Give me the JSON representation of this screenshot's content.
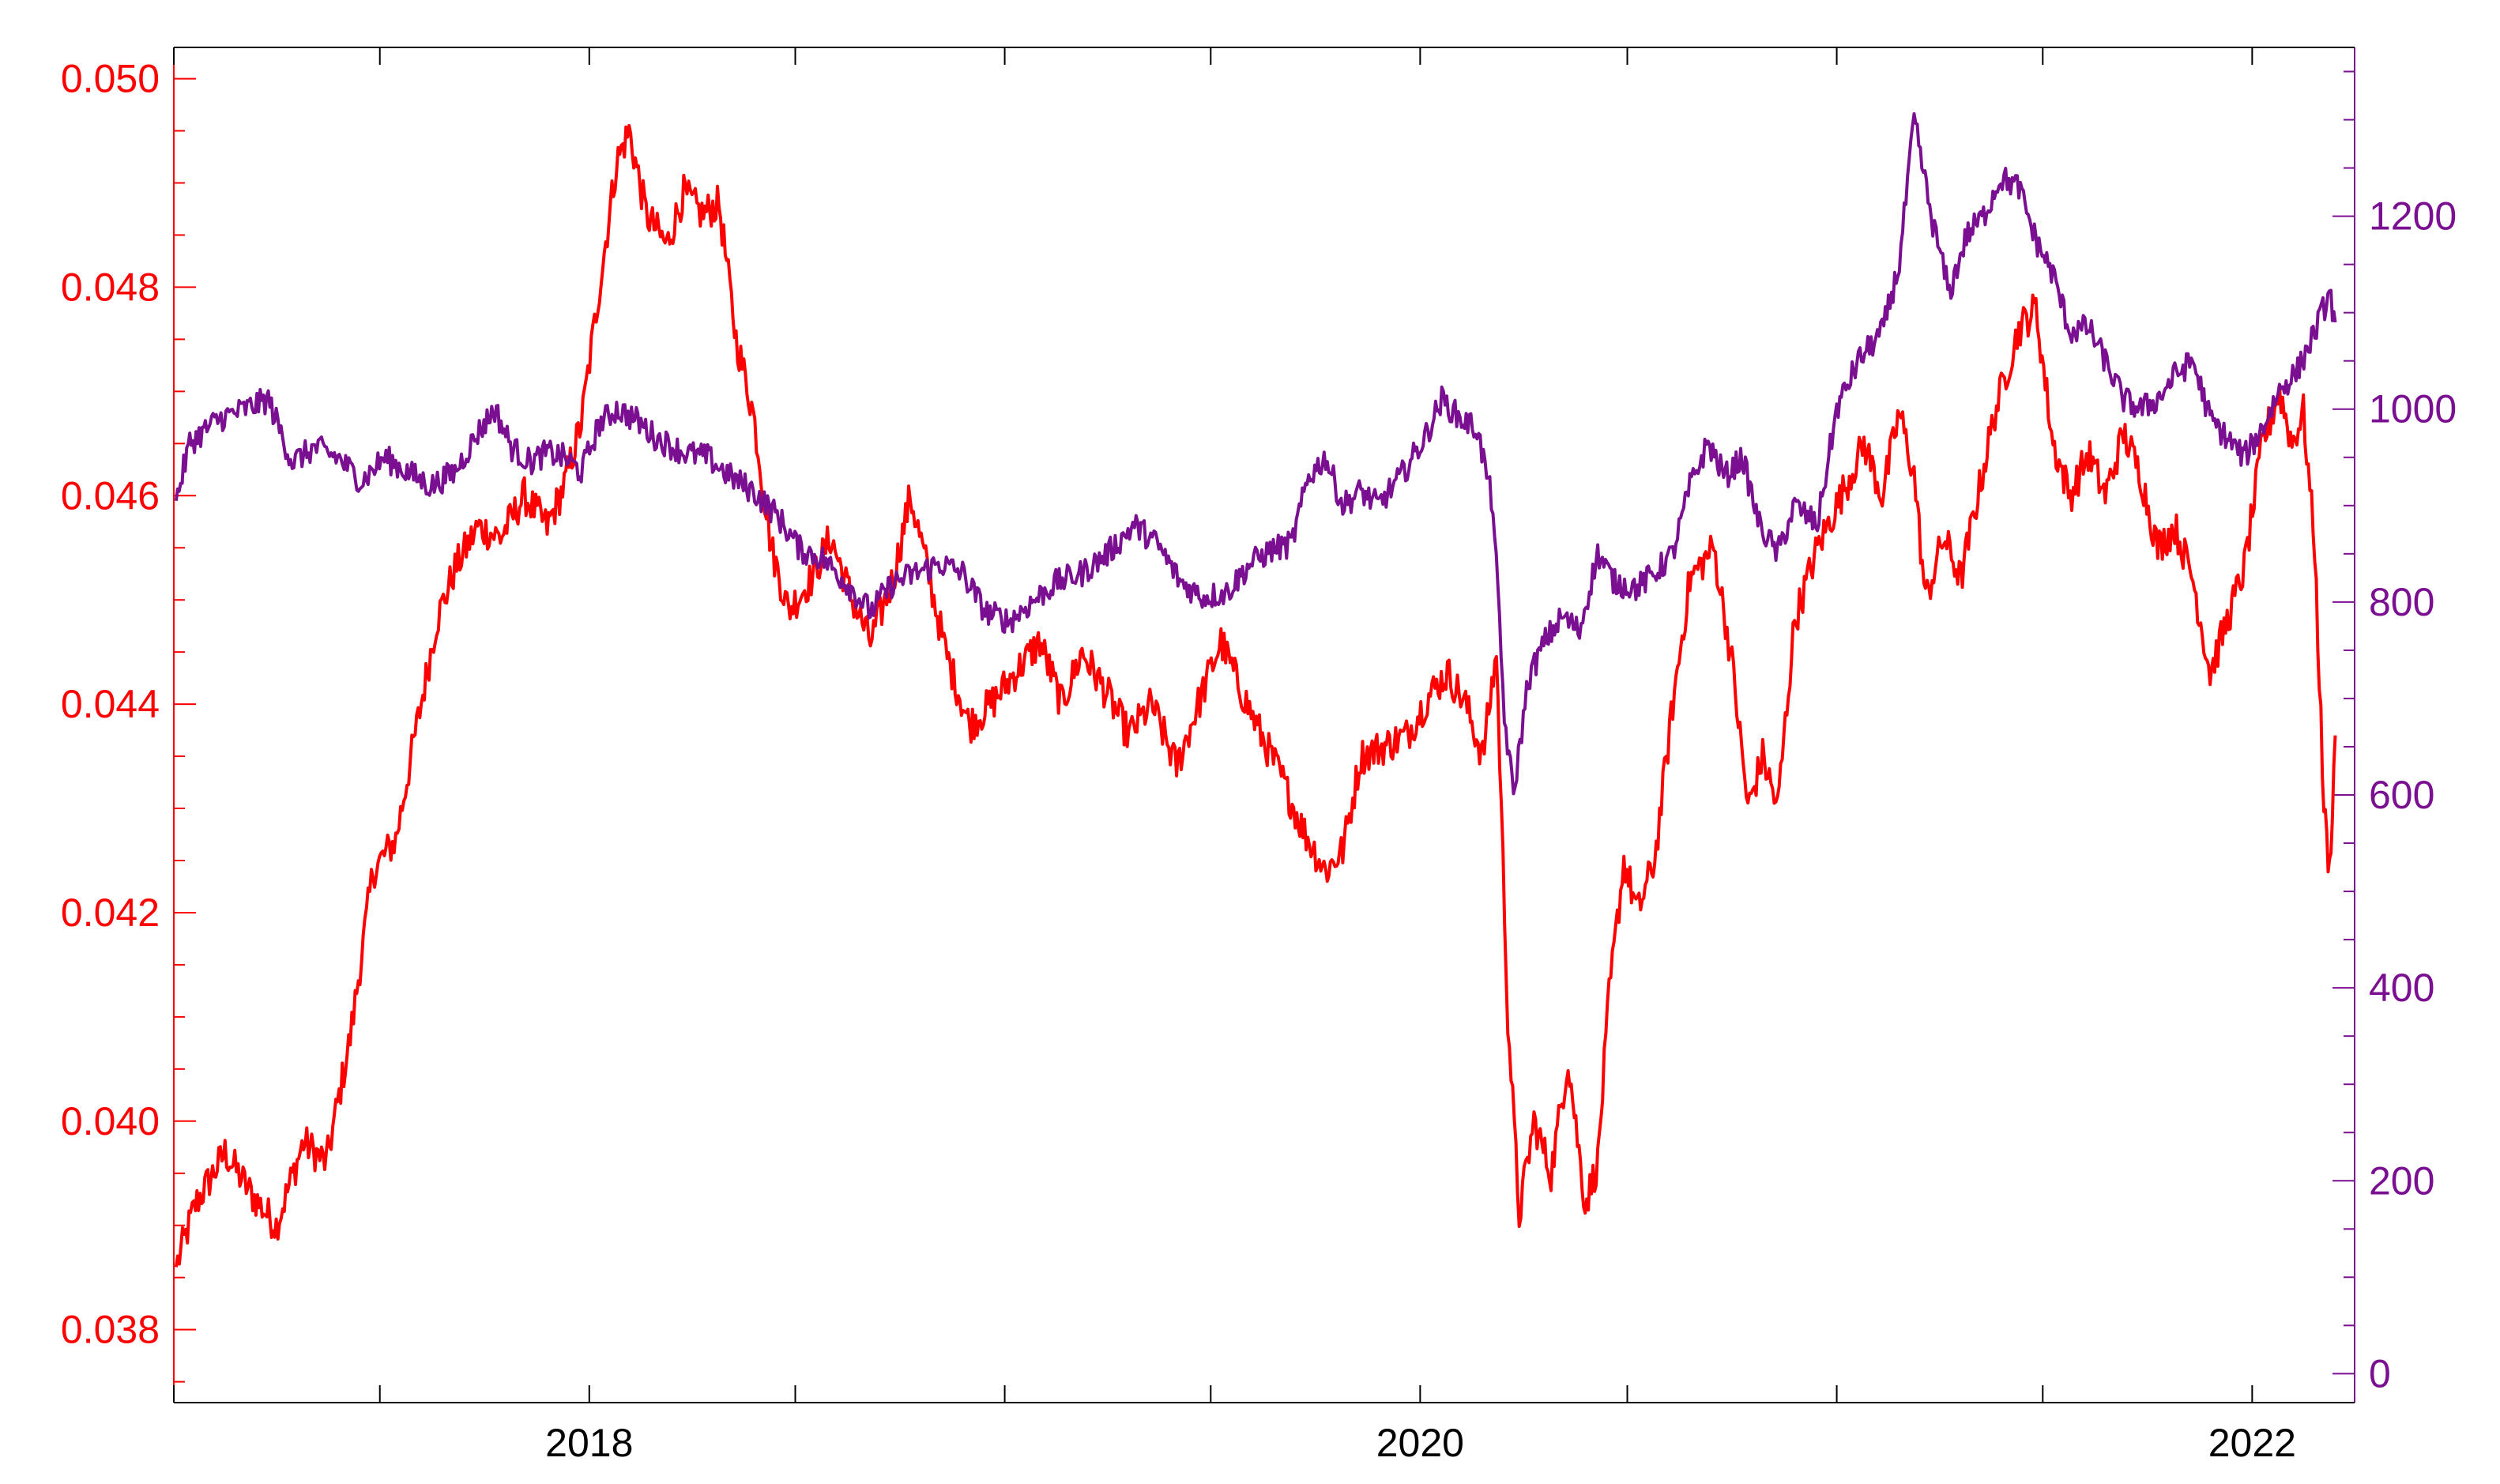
{
  "chart_data": {
    "type": "line",
    "title": "",
    "xlabel": "",
    "x_ticks": [
      "2018",
      "2020",
      "2022"
    ],
    "x_range": [
      "2017-01-01",
      "2022-04-01"
    ],
    "y_left": {
      "ticks": [
        "0.038",
        "0.040",
        "0.042",
        "0.044",
        "0.046",
        "0.048",
        "0.050"
      ],
      "range": [
        0.0373,
        0.0503
      ],
      "color": "#ff0000"
    },
    "y_right": {
      "ticks": [
        "0",
        "200",
        "400",
        "600",
        "800",
        "1000",
        "1200"
      ],
      "range": [
        -30,
        1375
      ],
      "color": "#7b0f91"
    },
    "grid": false,
    "legend": "none",
    "series": [
      {
        "axis": "left",
        "color": "#ff0000",
        "points": [
          [
            "2017-01-03",
            0.0386
          ],
          [
            "2017-01-20",
            0.0392
          ],
          [
            "2017-02-15",
            0.0397
          ],
          [
            "2017-03-10",
            0.0393
          ],
          [
            "2017-04-01",
            0.039
          ],
          [
            "2017-04-25",
            0.0398
          ],
          [
            "2017-05-15",
            0.0396
          ],
          [
            "2017-06-05",
            0.0408
          ],
          [
            "2017-06-25",
            0.0424
          ],
          [
            "2017-07-15",
            0.0427
          ],
          [
            "2017-08-01",
            0.0437
          ],
          [
            "2017-08-20",
            0.0448
          ],
          [
            "2017-09-05",
            0.0453
          ],
          [
            "2017-09-25",
            0.0457
          ],
          [
            "2017-10-15",
            0.0456
          ],
          [
            "2017-11-05",
            0.046
          ],
          [
            "2017-11-25",
            0.0457
          ],
          [
            "2017-12-10",
            0.0461
          ],
          [
            "2017-12-25",
            0.0467
          ],
          [
            "2018-01-10",
            0.048
          ],
          [
            "2018-01-25",
            0.0492
          ],
          [
            "2018-02-05",
            0.0495
          ],
          [
            "2018-02-20",
            0.0487
          ],
          [
            "2018-03-10",
            0.0484
          ],
          [
            "2018-03-25",
            0.0489
          ],
          [
            "2018-04-10",
            0.0487
          ],
          [
            "2018-04-25",
            0.0488
          ],
          [
            "2018-05-10",
            0.0475
          ],
          [
            "2018-05-25",
            0.0468
          ],
          [
            "2018-06-10",
            0.0455
          ],
          [
            "2018-06-25",
            0.0449
          ],
          [
            "2018-07-15",
            0.0452
          ],
          [
            "2018-08-01",
            0.0456
          ],
          [
            "2018-08-20",
            0.045
          ],
          [
            "2018-09-05",
            0.0446
          ],
          [
            "2018-09-25",
            0.0452
          ],
          [
            "2018-10-10",
            0.046
          ],
          [
            "2018-10-25",
            0.0453
          ],
          [
            "2018-11-10",
            0.0445
          ],
          [
            "2018-12-01",
            0.0438
          ],
          [
            "2018-12-20",
            0.044
          ],
          [
            "2019-01-10",
            0.0443
          ],
          [
            "2019-02-01",
            0.0446
          ],
          [
            "2019-02-20",
            0.044
          ],
          [
            "2019-03-10",
            0.0445
          ],
          [
            "2019-04-01",
            0.0441
          ],
          [
            "2019-04-20",
            0.0437
          ],
          [
            "2019-05-10",
            0.044
          ],
          [
            "2019-06-01",
            0.0434
          ],
          [
            "2019-06-20",
            0.044
          ],
          [
            "2019-07-10",
            0.0446
          ],
          [
            "2019-07-25",
            0.0442
          ],
          [
            "2019-08-10",
            0.0438
          ],
          [
            "2019-09-01",
            0.0433
          ],
          [
            "2019-09-20",
            0.0428
          ],
          [
            "2019-10-10",
            0.0424
          ],
          [
            "2019-10-25",
            0.0426
          ],
          [
            "2019-11-10",
            0.0435
          ],
          [
            "2019-12-01",
            0.0436
          ],
          [
            "2019-12-20",
            0.0437
          ],
          [
            "2020-01-10",
            0.0441
          ],
          [
            "2020-01-25",
            0.0443
          ],
          [
            "2020-02-10",
            0.044
          ],
          [
            "2020-02-25",
            0.0435
          ],
          [
            "2020-03-08",
            0.0445
          ],
          [
            "2020-03-18",
            0.041
          ],
          [
            "2020-03-28",
            0.0391
          ],
          [
            "2020-04-10",
            0.04
          ],
          [
            "2020-04-25",
            0.0395
          ],
          [
            "2020-05-10",
            0.0406
          ],
          [
            "2020-05-25",
            0.0392
          ],
          [
            "2020-06-05",
            0.0396
          ],
          [
            "2020-06-15",
            0.0412
          ],
          [
            "2020-06-28",
            0.0425
          ],
          [
            "2020-07-10",
            0.042
          ],
          [
            "2020-07-25",
            0.0425
          ],
          [
            "2020-08-10",
            0.044
          ],
          [
            "2020-08-25",
            0.0452
          ],
          [
            "2020-09-15",
            0.0455
          ],
          [
            "2020-10-01",
            0.0444
          ],
          [
            "2020-10-15",
            0.043
          ],
          [
            "2020-10-28",
            0.0435
          ],
          [
            "2020-11-10",
            0.043
          ],
          [
            "2020-11-25",
            0.0448
          ],
          [
            "2020-12-15",
            0.0455
          ],
          [
            "2021-01-05",
            0.046
          ],
          [
            "2021-01-25",
            0.0465
          ],
          [
            "2021-02-10",
            0.046
          ],
          [
            "2021-02-25",
            0.0468
          ],
          [
            "2021-03-10",
            0.0462
          ],
          [
            "2021-03-20",
            0.045
          ],
          [
            "2021-04-05",
            0.0456
          ],
          [
            "2021-04-20",
            0.0452
          ],
          [
            "2021-05-05",
            0.046
          ],
          [
            "2021-05-20",
            0.0468
          ],
          [
            "2021-06-10",
            0.0476
          ],
          [
            "2021-06-25",
            0.0478
          ],
          [
            "2021-07-10",
            0.0465
          ],
          [
            "2021-07-25",
            0.046
          ],
          [
            "2021-08-10",
            0.0464
          ],
          [
            "2021-08-25",
            0.046
          ],
          [
            "2021-09-10",
            0.0466
          ],
          [
            "2021-09-25",
            0.0462
          ],
          [
            "2021-10-10",
            0.0455
          ],
          [
            "2021-10-25",
            0.0457
          ],
          [
            "2021-11-10",
            0.0452
          ],
          [
            "2021-11-25",
            0.0443
          ],
          [
            "2021-12-10",
            0.0448
          ],
          [
            "2021-12-25",
            0.0453
          ],
          [
            "2022-01-10",
            0.0465
          ],
          [
            "2022-01-25",
            0.047
          ],
          [
            "2022-02-05",
            0.0465
          ],
          [
            "2022-02-15",
            0.0468
          ],
          [
            "2022-02-25",
            0.0455
          ],
          [
            "2022-03-05",
            0.043
          ],
          [
            "2022-03-10",
            0.0424
          ],
          [
            "2022-03-15",
            0.0437
          ]
        ]
      },
      {
        "axis": "right",
        "color": "#7b0f91",
        "points": [
          [
            "2017-01-03",
            905
          ],
          [
            "2017-01-15",
            965
          ],
          [
            "2017-02-10",
            990
          ],
          [
            "2017-03-05",
            1000
          ],
          [
            "2017-03-25",
            1010
          ],
          [
            "2017-04-15",
            945
          ],
          [
            "2017-05-05",
            960
          ],
          [
            "2017-05-25",
            950
          ],
          [
            "2017-06-15",
            925
          ],
          [
            "2017-07-05",
            950
          ],
          [
            "2017-07-25",
            935
          ],
          [
            "2017-08-15",
            920
          ],
          [
            "2017-09-05",
            935
          ],
          [
            "2017-09-25",
            975
          ],
          [
            "2017-10-10",
            1000
          ],
          [
            "2017-10-25",
            960
          ],
          [
            "2017-11-10",
            945
          ],
          [
            "2017-11-25",
            955
          ],
          [
            "2017-12-10",
            950
          ],
          [
            "2017-12-25",
            935
          ],
          [
            "2018-01-10",
            985
          ],
          [
            "2018-01-25",
            1000
          ],
          [
            "2018-02-10",
            990
          ],
          [
            "2018-03-01",
            970
          ],
          [
            "2018-03-25",
            955
          ],
          [
            "2018-04-15",
            950
          ],
          [
            "2018-05-05",
            930
          ],
          [
            "2018-05-25",
            915
          ],
          [
            "2018-06-15",
            890
          ],
          [
            "2018-07-05",
            855
          ],
          [
            "2018-07-25",
            845
          ],
          [
            "2018-08-15",
            820
          ],
          [
            "2018-09-05",
            790
          ],
          [
            "2018-09-25",
            820
          ],
          [
            "2018-10-15",
            830
          ],
          [
            "2018-11-05",
            840
          ],
          [
            "2018-11-25",
            830
          ],
          [
            "2018-12-15",
            790
          ],
          [
            "2019-01-05",
            780
          ],
          [
            "2019-01-25",
            800
          ],
          [
            "2019-02-15",
            820
          ],
          [
            "2019-03-10",
            830
          ],
          [
            "2019-04-01",
            850
          ],
          [
            "2019-04-25",
            880
          ],
          [
            "2019-05-15",
            860
          ],
          [
            "2019-06-05",
            820
          ],
          [
            "2019-06-25",
            805
          ],
          [
            "2019-07-15",
            810
          ],
          [
            "2019-08-05",
            840
          ],
          [
            "2019-08-25",
            855
          ],
          [
            "2019-09-10",
            860
          ],
          [
            "2019-09-25",
            930
          ],
          [
            "2019-10-10",
            950
          ],
          [
            "2019-10-25",
            900
          ],
          [
            "2019-11-10",
            915
          ],
          [
            "2019-11-25",
            900
          ],
          [
            "2019-12-15",
            930
          ],
          [
            "2020-01-05",
            970
          ],
          [
            "2020-01-20",
            1010
          ],
          [
            "2020-02-05",
            990
          ],
          [
            "2020-02-20",
            980
          ],
          [
            "2020-03-05",
            900
          ],
          [
            "2020-03-15",
            680
          ],
          [
            "2020-03-23",
            600
          ],
          [
            "2020-04-05",
            720
          ],
          [
            "2020-04-20",
            760
          ],
          [
            "2020-05-05",
            785
          ],
          [
            "2020-05-20",
            770
          ],
          [
            "2020-06-05",
            850
          ],
          [
            "2020-06-20",
            820
          ],
          [
            "2020-07-10",
            815
          ],
          [
            "2020-07-25",
            830
          ],
          [
            "2020-08-10",
            850
          ],
          [
            "2020-08-25",
            920
          ],
          [
            "2020-09-10",
            965
          ],
          [
            "2020-09-25",
            930
          ],
          [
            "2020-10-10",
            950
          ],
          [
            "2020-10-25",
            880
          ],
          [
            "2020-11-10",
            850
          ],
          [
            "2020-11-25",
            900
          ],
          [
            "2020-12-15",
            880
          ],
          [
            "2021-01-01",
            1000
          ],
          [
            "2021-01-20",
            1050
          ],
          [
            "2021-02-10",
            1080
          ],
          [
            "2021-02-25",
            1150
          ],
          [
            "2021-03-10",
            1300
          ],
          [
            "2021-03-25",
            1200
          ],
          [
            "2021-04-10",
            1120
          ],
          [
            "2021-04-25",
            1180
          ],
          [
            "2021-05-10",
            1200
          ],
          [
            "2021-05-25",
            1240
          ],
          [
            "2021-06-10",
            1230
          ],
          [
            "2021-06-25",
            1175
          ],
          [
            "2021-07-10",
            1140
          ],
          [
            "2021-07-25",
            1080
          ],
          [
            "2021-08-10",
            1085
          ],
          [
            "2021-08-25",
            1050
          ],
          [
            "2021-09-10",
            1010
          ],
          [
            "2021-09-25",
            1000
          ],
          [
            "2021-10-10",
            1010
          ],
          [
            "2021-10-25",
            1035
          ],
          [
            "2021-11-10",
            1050
          ],
          [
            "2021-11-25",
            990
          ],
          [
            "2021-12-10",
            970
          ],
          [
            "2021-12-25",
            950
          ],
          [
            "2022-01-10",
            980
          ],
          [
            "2022-01-25",
            1020
          ],
          [
            "2022-02-10",
            1040
          ],
          [
            "2022-02-25",
            1080
          ],
          [
            "2022-03-10",
            1120
          ],
          [
            "2022-03-15",
            1090
          ]
        ]
      }
    ]
  }
}
